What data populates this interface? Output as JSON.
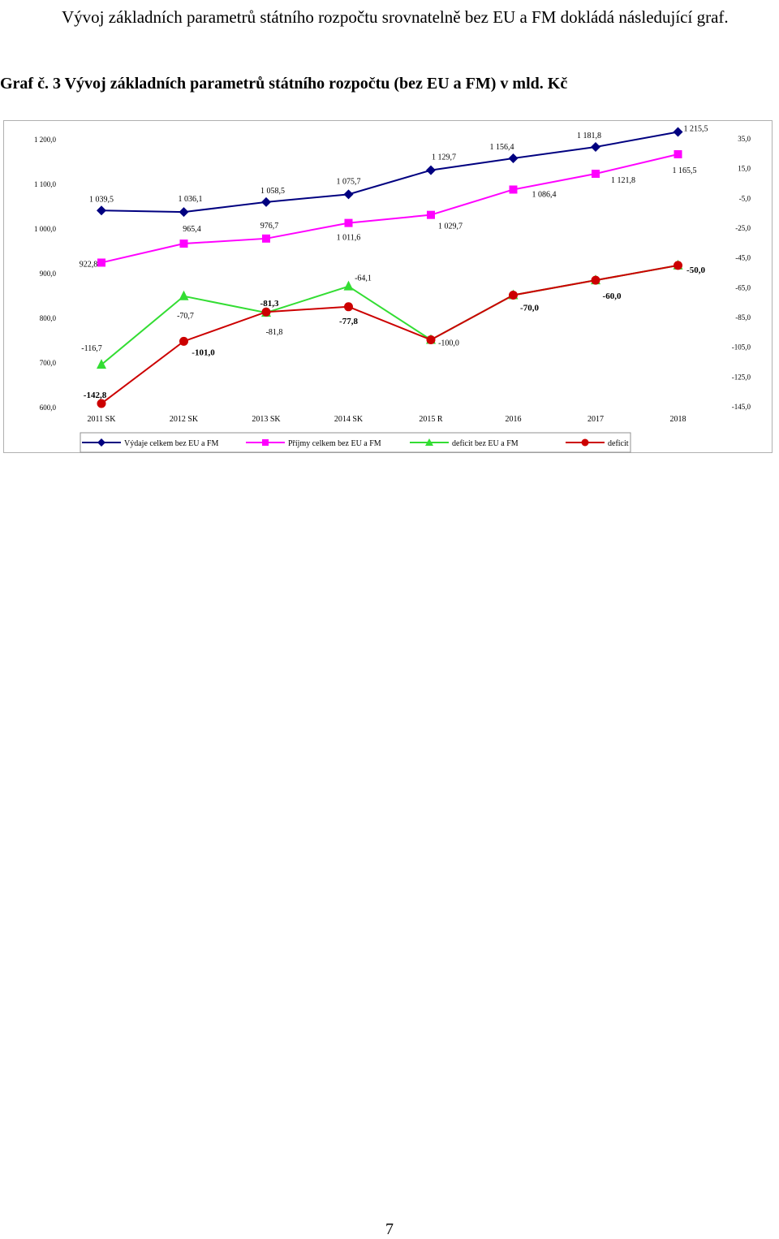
{
  "intro_text": "Vývoj základních parametrů státního rozpočtu srovnatelně bez EU a FM dokládá následující graf.",
  "caption": "Graf č. 3 Vývoj základních parametrů státního rozpočtu (bez EU a FM) v mld. Kč",
  "page_number": "7",
  "chart_data": {
    "type": "line",
    "title": "",
    "categories": [
      "2011 SK",
      "2012 SK",
      "2013 SK",
      "2014 SK",
      "2015 R",
      "2016",
      "2017",
      "2018"
    ],
    "y_left": {
      "ylim": [
        600,
        1200
      ],
      "ticks": [
        "600,0",
        "700,0",
        "800,0",
        "900,0",
        "1 000,0",
        "1 100,0",
        "1 200,0"
      ]
    },
    "y_right": {
      "ylim": [
        -145,
        35
      ],
      "ticks": [
        "-145,0",
        "-125,0",
        "-105,0",
        "-85,0",
        "-65,0",
        "-45,0",
        "-25,0",
        "-5,0",
        "15,0",
        "35,0"
      ]
    },
    "grid": false,
    "legend_position": "bottom",
    "series": [
      {
        "name": "Výdaje celkem bez EU a FM",
        "axis": "left",
        "color": "#000080",
        "marker": "diamond",
        "values": [
          1039.5,
          1036.1,
          1058.5,
          1075.7,
          1129.7,
          1156.4,
          1181.8,
          1215.5
        ],
        "labels": [
          "1 039,5",
          "1 036,1",
          "1 058,5",
          "1 075,7",
          "1 129,7",
          "1 156,4",
          "1 181,8",
          "1 215,5"
        ]
      },
      {
        "name": "Příjmy celkem bez EU a FM",
        "axis": "left",
        "color": "#ff00ff",
        "marker": "square",
        "values": [
          922.8,
          965.4,
          976.7,
          1011.6,
          1029.7,
          1086.4,
          1121.8,
          1165.5
        ],
        "labels": [
          "922,8",
          "965,4",
          "976,7",
          "1 011,6",
          "1 029,7",
          "1 086,4",
          "1 121,8",
          "1 165,5"
        ]
      },
      {
        "name": "deficit bez EU a FM",
        "axis": "right",
        "color": "#33dd33",
        "marker": "triangle",
        "values": [
          -116.7,
          -70.7,
          -81.8,
          -64.1,
          -100.0,
          -70.0,
          -60.0,
          -50.0
        ],
        "labels": [
          "-116,7",
          "-70,7",
          "-81,8",
          "-64,1",
          "-100,0",
          "",
          "",
          ""
        ]
      },
      {
        "name": "deficit",
        "axis": "right",
        "color": "#cc0000",
        "marker": "circle",
        "values": [
          -142.8,
          -101.0,
          -81.3,
          -77.8,
          -100.0,
          -70.0,
          -60.0,
          -50.0
        ],
        "labels": [
          "-142,8",
          "-101,0",
          "-81,3",
          "-77,8",
          "",
          "-70,0",
          "-60,0",
          "-50,0"
        ]
      }
    ]
  }
}
